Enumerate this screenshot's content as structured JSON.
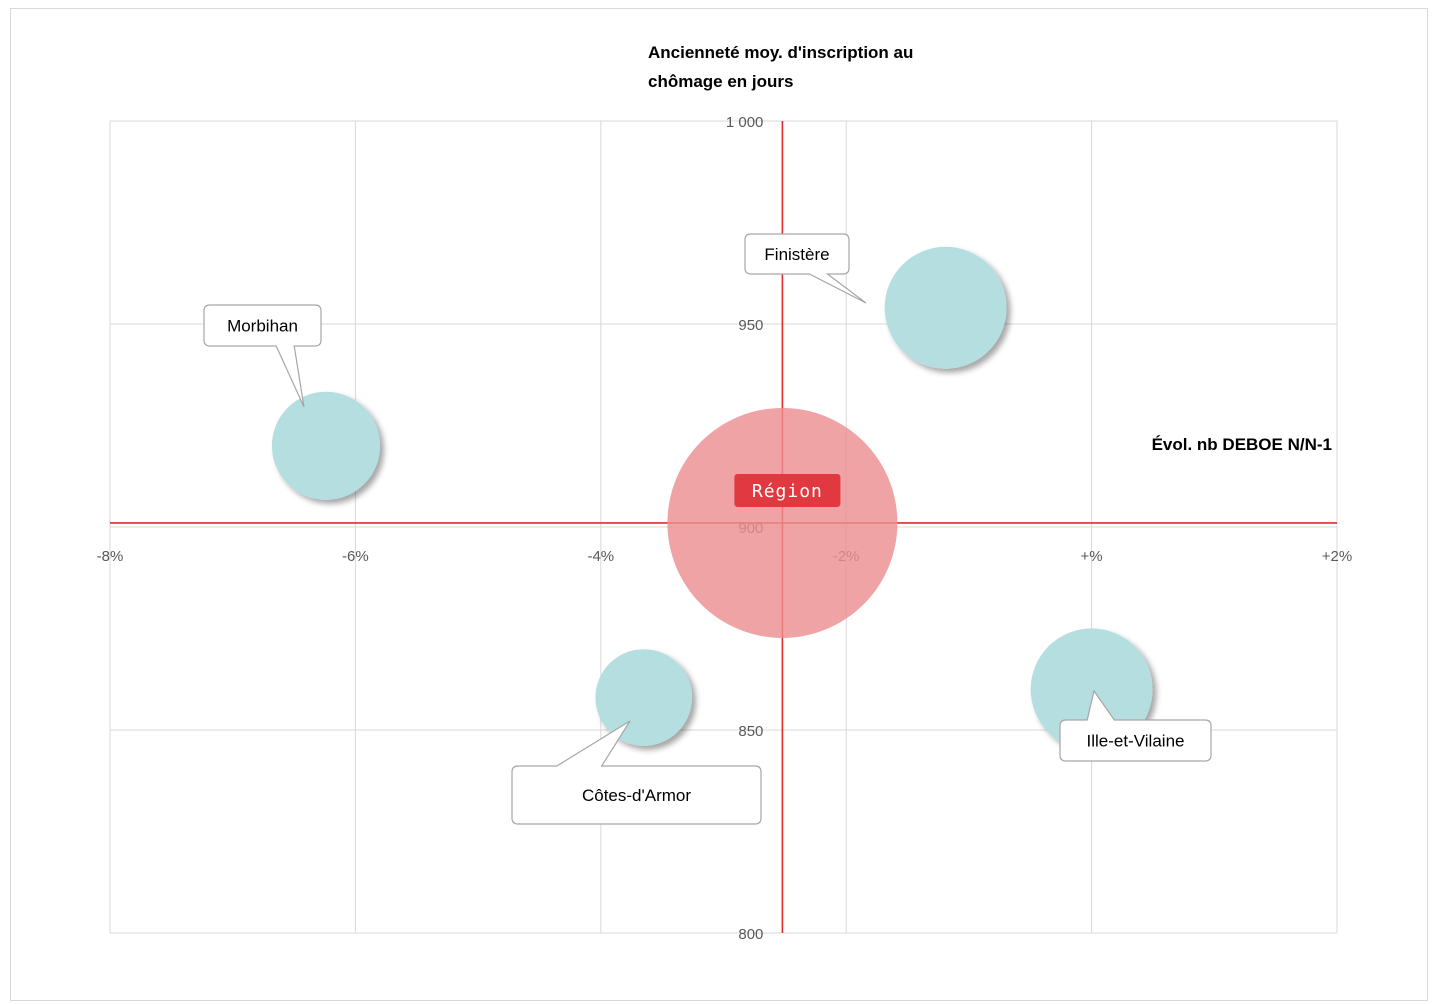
{
  "chart_data": {
    "type": "scatter",
    "title": "",
    "ylabel": "Ancienneté moy. d'inscription au chômage en jours",
    "ylabel_lines": [
      "Ancienneté moy. d'inscription au",
      "chômage en jours"
    ],
    "xlabel": "Évol. nb DEBOE N/N-1",
    "xlim": [
      -0.08,
      0.02
    ],
    "ylim": [
      800,
      1000
    ],
    "x_ticks": [
      {
        "value": -0.08,
        "label": "-8%"
      },
      {
        "value": -0.06,
        "label": "-6%"
      },
      {
        "value": -0.04,
        "label": "-4%"
      },
      {
        "value": -0.02,
        "label": "-2%"
      },
      {
        "value": 0.0,
        "label": "+%"
      },
      {
        "value": 0.02,
        "label": "+2%"
      }
    ],
    "y_ticks": [
      {
        "value": 800,
        "label": "800"
      },
      {
        "value": 850,
        "label": "850"
      },
      {
        "value": 900,
        "label": "900"
      },
      {
        "value": 950,
        "label": "950"
      },
      {
        "value": 1000,
        "label": "1 000"
      }
    ],
    "reference": {
      "x": -0.0252,
      "y": 901
    },
    "grid": true,
    "points": [
      {
        "label": "Morbihan",
        "x": -0.0624,
        "y": 920,
        "size": 0.47,
        "color": "#b4dee0"
      },
      {
        "label": "Finistère",
        "x": -0.0119,
        "y": 954,
        "size": 0.53,
        "color": "#b4dee0"
      },
      {
        "label": "Côtes-d'Armor",
        "x": -0.0365,
        "y": 858,
        "size": 0.42,
        "color": "#b4dee0"
      },
      {
        "label": "Ille-et-Vilaine",
        "x": 0.0,
        "y": 860,
        "size": 0.53,
        "color": "#b4dee0"
      },
      {
        "label": "Région",
        "x": -0.0252,
        "y": 901,
        "size": 1.0,
        "color": "#ec8f91",
        "highlight": true
      }
    ]
  },
  "colors": {
    "bubble": "#b4dee0",
    "region_bubble": "#ec8f91",
    "region_label_bg": "#e0393f",
    "reference_line": "#e32b2b",
    "grid": "#d9d9d9"
  }
}
